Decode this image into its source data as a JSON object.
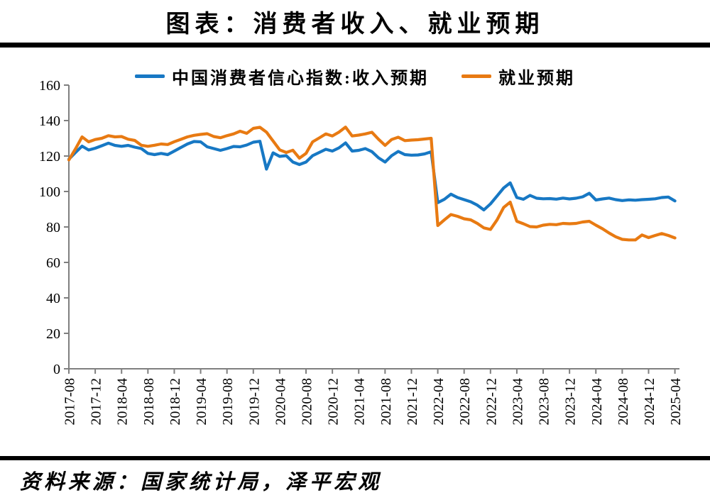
{
  "title": "图表：消费者收入、就业预期",
  "footer": {
    "source_text": "资料来源：国家统计局，泽平宏观"
  },
  "chart_data": {
    "type": "line",
    "title": "图表：消费者收入、就业预期",
    "xlabel": "",
    "ylabel": "",
    "ylim": [
      0,
      160
    ],
    "yticks": [
      0,
      20,
      40,
      60,
      80,
      100,
      120,
      140,
      160
    ],
    "grid": false,
    "legend_position": "top",
    "xtick_labels": [
      "2017-08",
      "2017-12",
      "2018-04",
      "2018-08",
      "2018-12",
      "2019-04",
      "2019-08",
      "2019-12",
      "2020-04",
      "2020-08",
      "2020-12",
      "2021-04",
      "2021-08",
      "2021-12",
      "2022-04",
      "2022-08",
      "2022-12",
      "2023-04",
      "2023-08",
      "2023-12",
      "2024-04",
      "2024-08",
      "2024-12",
      "2025-04"
    ],
    "x": [
      "2017-08",
      "2017-09",
      "2017-10",
      "2017-11",
      "2017-12",
      "2018-01",
      "2018-02",
      "2018-03",
      "2018-04",
      "2018-05",
      "2018-06",
      "2018-07",
      "2018-08",
      "2018-09",
      "2018-10",
      "2018-11",
      "2018-12",
      "2019-01",
      "2019-02",
      "2019-03",
      "2019-04",
      "2019-05",
      "2019-06",
      "2019-07",
      "2019-08",
      "2019-09",
      "2019-10",
      "2019-11",
      "2019-12",
      "2020-01",
      "2020-02",
      "2020-03",
      "2020-04",
      "2020-05",
      "2020-06",
      "2020-07",
      "2020-08",
      "2020-09",
      "2020-10",
      "2020-11",
      "2020-12",
      "2021-01",
      "2021-02",
      "2021-03",
      "2021-04",
      "2021-05",
      "2021-06",
      "2021-07",
      "2021-08",
      "2021-09",
      "2021-10",
      "2021-11",
      "2021-12",
      "2022-01",
      "2022-02",
      "2022-03",
      "2022-04",
      "2022-05",
      "2022-06",
      "2022-07",
      "2022-08",
      "2022-09",
      "2022-10",
      "2022-11",
      "2022-12",
      "2023-01",
      "2023-02",
      "2023-03",
      "2023-04",
      "2023-05",
      "2023-06",
      "2023-07",
      "2023-08",
      "2023-09",
      "2023-10",
      "2023-11",
      "2023-12",
      "2024-01",
      "2024-02",
      "2024-03",
      "2024-04",
      "2024-05",
      "2024-06",
      "2024-07",
      "2024-08",
      "2024-09",
      "2024-10",
      "2024-11",
      "2024-12",
      "2025-01",
      "2025-02",
      "2025-03",
      "2025-04"
    ],
    "series": [
      {
        "name": "中国消费者信心指数:收入预期",
        "color": "#1778c4",
        "values": [
          118.2,
          122.0,
          125.6,
          123.4,
          124.4,
          125.8,
          127.3,
          126.0,
          125.5,
          126.0,
          125.0,
          124.2,
          121.5,
          120.8,
          121.5,
          120.8,
          122.8,
          124.8,
          126.8,
          128.2,
          128.0,
          125.2,
          124.2,
          123.2,
          124.2,
          125.4,
          125.2,
          126.2,
          127.8,
          128.3,
          112.6,
          121.8,
          119.8,
          120.2,
          116.6,
          115.2,
          116.6,
          120.2,
          122.0,
          123.8,
          122.8,
          124.6,
          127.4,
          122.8,
          123.2,
          124.2,
          122.5,
          119.0,
          116.6,
          120.2,
          122.6,
          120.8,
          120.5,
          120.6,
          121.2,
          122.4,
          93.7,
          95.6,
          98.5,
          96.6,
          95.4,
          94.2,
          92.3,
          89.6,
          93.0,
          97.5,
          102.0,
          104.9,
          96.6,
          95.6,
          97.8,
          96.2,
          95.9,
          96.0,
          95.7,
          96.3,
          95.8,
          96.2,
          97.0,
          99.0,
          95.2,
          95.8,
          96.3,
          95.4,
          94.9,
          95.3,
          95.1,
          95.4,
          95.6,
          95.9,
          96.6,
          96.9,
          94.7
        ]
      },
      {
        "name": "就业预期",
        "color": "#e87a12",
        "values": [
          117.8,
          124.0,
          130.8,
          128.0,
          129.3,
          130.0,
          131.5,
          130.8,
          131.0,
          129.5,
          128.8,
          126.1,
          125.5,
          126.1,
          126.8,
          126.5,
          128.1,
          129.4,
          130.8,
          131.7,
          132.2,
          132.6,
          131.0,
          130.3,
          131.5,
          132.5,
          134.0,
          132.8,
          135.6,
          136.2,
          133.5,
          128.5,
          123.5,
          122.0,
          123.3,
          118.8,
          121.5,
          128.0,
          130.2,
          132.5,
          131.3,
          133.5,
          136.3,
          131.3,
          131.8,
          132.5,
          133.4,
          129.5,
          126.0,
          129.3,
          130.6,
          128.7,
          129.0,
          129.2,
          129.6,
          130.0,
          80.8,
          84.0,
          87.0,
          86.0,
          84.6,
          84.0,
          82.0,
          79.5,
          78.6,
          84.0,
          91.0,
          94.0,
          83.2,
          81.8,
          80.2,
          80.0,
          81.0,
          81.5,
          81.3,
          82.0,
          81.8,
          82.0,
          82.8,
          83.2,
          81.0,
          79.0,
          76.6,
          74.5,
          73.0,
          72.7,
          72.7,
          75.5,
          74.0,
          75.2,
          76.3,
          75.2,
          73.8
        ]
      }
    ]
  }
}
